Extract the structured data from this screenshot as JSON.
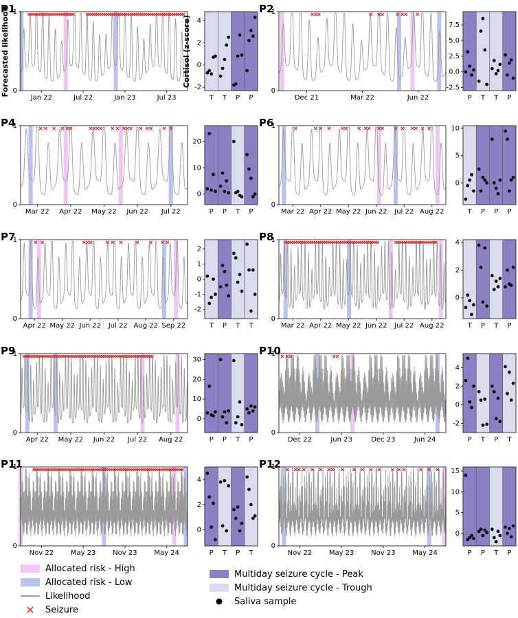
{
  "labels": {
    "y_likelihood": "Forecasted likelihood",
    "y_cortisol": "Cortisol (z-score)"
  },
  "legend": [
    {
      "key": "high",
      "label": "Allocated risk - High",
      "color": "#eec8f2",
      "kind": "patch"
    },
    {
      "key": "low",
      "label": "Allocated risk - Low",
      "color": "#b9c3ec",
      "kind": "patch"
    },
    {
      "key": "likelihood",
      "label": "Likelihood",
      "color": "#9a9a9a",
      "kind": "line"
    },
    {
      "key": "seizure",
      "label": "Seizure",
      "color": "#d62728",
      "kind": "x"
    },
    {
      "key": "peak",
      "label": "Multiday seizure cycle - Peak",
      "color": "#8b80c4",
      "kind": "patch"
    },
    {
      "key": "trough",
      "label": "Multiday seizure cycle - Trough",
      "color": "#dcdaee",
      "kind": "patch"
    },
    {
      "key": "saliva",
      "label": "Saliva sample",
      "color": "#000000",
      "kind": "dot"
    }
  ],
  "colors": {
    "peak": "#8b80c4",
    "trough": "#dcdaee",
    "high": "#eec8f2",
    "low": "#b9c3ec",
    "likelihood": "#9a9a9a",
    "seizure": "#d62728"
  },
  "chart_data": [
    {
      "panel": "P1",
      "type": "line",
      "ylim": [
        0,
        1
      ],
      "yticks": [
        "0",
        "1"
      ],
      "xticks": [
        "Jan 22",
        "Jul 22",
        "Jan 23",
        "Jul 23"
      ],
      "cycles": 4,
      "density": "high",
      "high_bands": [
        0.27
      ],
      "low_bands": [
        0.005,
        0.57
      ],
      "seizure_spans": [
        [
          0.05,
          0.32
        ],
        [
          0.4,
          0.98
        ]
      ],
      "cortisol": {
        "ylim": [
          -2.3,
          4.8
        ],
        "yticks": [
          "-2",
          "0",
          "2",
          "4"
        ],
        "phases": [
          "T",
          "T",
          "P",
          "P"
        ],
        "samples": [
          [
            -0.7,
            -0.5,
            -0.8,
            0.7,
            0.8
          ],
          [
            -1.0,
            -0.3,
            0.5,
            1.8,
            2.5
          ],
          [
            -1.8,
            -1.7,
            0.8,
            2.7,
            0.9
          ],
          [
            -0.5,
            2.2,
            3.1,
            2.6,
            4.3
          ]
        ]
      }
    },
    {
      "panel": "P2",
      "type": "line",
      "ylim": [
        0,
        1
      ],
      "yticks": [
        "0",
        "1"
      ],
      "xticks": [
        "Dec 21",
        "Mar 22",
        "Jun 22"
      ],
      "cycles": 4,
      "density": "medium",
      "high_bands": [
        0.02,
        0.8
      ],
      "low_bands": [
        0.72,
        0.96
      ],
      "seizure_points": [
        0.2,
        0.22,
        0.24,
        0.55,
        0.6,
        0.62,
        0.71,
        0.74,
        0.76,
        0.83
      ],
      "cortisol": {
        "ylim": [
          -3,
          9.6
        ],
        "yticks": [
          "-2.5",
          "0.0",
          "2.5",
          "5.0",
          "7.5"
        ],
        "phases": [
          "P",
          "T",
          "T",
          "P"
        ],
        "samples": [
          [
            0.0,
            3.2,
            0.9,
            -0.5,
            0.3
          ],
          [
            -1.5,
            6.5,
            8.5,
            3.5,
            -2.0
          ],
          [
            0.5,
            1.8,
            -0.3,
            0.2,
            1.2
          ],
          [
            2.7,
            -0.5,
            1.4,
            1.9,
            -1.0
          ]
        ]
      }
    },
    {
      "panel": "P4",
      "type": "line",
      "ylim": [
        0,
        1
      ],
      "yticks": [
        "0",
        "1"
      ],
      "xticks": [
        "Mar 22",
        "Apr 22",
        "May 22",
        "Jun 22",
        "Jul 22"
      ],
      "cycles": 5,
      "density": "low",
      "high_bands": [
        0.27,
        0.6
      ],
      "low_bands": [
        0.06,
        0.9
      ],
      "seizure_points": [
        0.12,
        0.15,
        0.2,
        0.25,
        0.28,
        0.3,
        0.42,
        0.44,
        0.46,
        0.48,
        0.55,
        0.58,
        0.62,
        0.64,
        0.66,
        0.72,
        0.76,
        0.78,
        0.86,
        0.9
      ],
      "cortisol": {
        "ylim": [
          -4,
          26
        ],
        "yticks": [
          "0",
          "10",
          "20"
        ],
        "phases": [
          "P",
          "P",
          "T",
          "P"
        ],
        "samples": [
          [
            2.0,
            23.0,
            1.5,
            7.5,
            1.0
          ],
          [
            3.0,
            8.0,
            1.0,
            5.0,
            0.5
          ],
          [
            20.0,
            0.5,
            1.0,
            -0.5,
            -1.0
          ],
          [
            15.0,
            9.5,
            6.0,
            -1.0,
            0.0
          ]
        ]
      }
    },
    {
      "panel": "P6",
      "type": "line",
      "ylim": [
        0,
        1
      ],
      "yticks": [
        "0",
        "1"
      ],
      "xticks": [
        "Mar 22",
        "Apr 22",
        "May 22",
        "Jun 22",
        "Jul 22",
        "Aug 22"
      ],
      "cycles": 6,
      "density": "low",
      "high_bands": [
        0.6,
        0.95
      ],
      "low_bands": [
        0.03,
        0.7
      ],
      "seizure_points": [
        0.1,
        0.22,
        0.25,
        0.3,
        0.38,
        0.4,
        0.48,
        0.52,
        0.54,
        0.6,
        0.62,
        0.7,
        0.74,
        0.8,
        0.82,
        0.86,
        0.9
      ],
      "cortisol": {
        "ylim": [
          -4,
          10.5
        ],
        "yticks": [
          "0",
          "5",
          "10"
        ],
        "phases": [
          "T",
          "P",
          "P",
          "P"
        ],
        "samples": [
          [
            -3.0,
            -0.5,
            0.5,
            1.5,
            -1.5
          ],
          [
            2.5,
            -1.5,
            1.0,
            0.5,
            0.0
          ],
          [
            8.0,
            0.0,
            -1.0,
            -2.0,
            0.5
          ],
          [
            9.5,
            8.0,
            -1.5,
            0.5,
            1.0
          ]
        ]
      }
    },
    {
      "panel": "P7",
      "type": "line",
      "ylim": [
        0,
        1
      ],
      "yticks": [
        "0",
        "1"
      ],
      "xticks": [
        "Apr 22",
        "May 22",
        "Jun 22",
        "Jul 22",
        "Aug 22",
        "Sep 22"
      ],
      "cycles": 8,
      "density": "low",
      "high_bands": [
        0.11,
        0.93
      ],
      "low_bands": [
        0.06,
        0.86
      ],
      "seizure_points": [
        0.09,
        0.13,
        0.38,
        0.4,
        0.42,
        0.52,
        0.55,
        0.6,
        0.7,
        0.78,
        0.85,
        0.88
      ],
      "cortisol": {
        "ylim": [
          -2.6,
          2.6
        ],
        "yticks": [
          "-2",
          "-1",
          "0",
          "1",
          "2"
        ],
        "phases": [
          "T",
          "P",
          "T",
          "T"
        ],
        "samples": [
          [
            0.2,
            -1.6,
            -1.2,
            0.0,
            -1.0
          ],
          [
            -0.5,
            0.9,
            0.5,
            -0.4,
            -1.1
          ],
          [
            1.7,
            1.4,
            -0.2,
            0.3,
            -0.8
          ],
          [
            2.3,
            0.6,
            -2.1,
            0.6,
            -1.0
          ]
        ]
      }
    },
    {
      "panel": "P8",
      "type": "line",
      "ylim": [
        0,
        1
      ],
      "yticks": [
        "0",
        "1"
      ],
      "xticks": [
        "Mar 22",
        "Apr 22",
        "May 22",
        "Jun 22",
        "Jul 22",
        "Aug 22"
      ],
      "cycles": 10,
      "density": "medium",
      "high_bands": [
        0.67,
        0.97
      ],
      "low_bands": [
        0.04,
        0.42
      ],
      "seizure_spans": [
        [
          0.04,
          0.6
        ],
        [
          0.7,
          0.95
        ]
      ],
      "cortisol": {
        "ylim": [
          -1.5,
          4.2
        ],
        "yticks": [
          "0",
          "2",
          "4"
        ],
        "phases": [
          "T",
          "P",
          "T",
          "P"
        ],
        "samples": [
          [
            -0.7,
            0.2,
            -0.2,
            -1.2,
            -0.5
          ],
          [
            3.8,
            2.2,
            -0.3,
            3.6,
            -0.6
          ],
          [
            1.6,
            0.6,
            1.2,
            0.8,
            1.4
          ],
          [
            0.8,
            2.0,
            1.0,
            0.9,
            2.2
          ]
        ]
      }
    },
    {
      "panel": "P9",
      "type": "line",
      "ylim": [
        0,
        1
      ],
      "yticks": [
        "0",
        "1"
      ],
      "xticks": [
        "Apr 22",
        "May 22",
        "Jun 22",
        "Jul 22",
        "Aug 22"
      ],
      "cycles": 12,
      "density": "medium",
      "high_bands": [
        0.73,
        0.94
      ],
      "low_bands": [
        0.04,
        0.21
      ],
      "seizure_spans": [
        [
          0.02,
          0.8
        ]
      ],
      "cortisol": {
        "ylim": [
          -7,
          33
        ],
        "yticks": [
          "0",
          "10",
          "20",
          "30"
        ],
        "phases": [
          "P",
          "P",
          "T",
          "P"
        ],
        "samples": [
          [
            3.0,
            16.5,
            2.0,
            1.5,
            3.5
          ],
          [
            30.0,
            1.0,
            3.5,
            -2.0,
            4.0
          ],
          [
            29.5,
            -2.0,
            1.0,
            8.5,
            -3.0
          ],
          [
            5.0,
            3.0,
            6.5,
            4.0,
            6.0
          ]
        ]
      }
    },
    {
      "panel": "P10",
      "type": "line",
      "ylim": [
        0,
        1
      ],
      "yticks": [
        "0",
        "1"
      ],
      "xticks": [
        "Dec 22",
        "Jun 23",
        "Dec 23",
        "Jun 24"
      ],
      "cycles": 30,
      "density": "high",
      "high_bands": [
        0.44
      ],
      "low_bands": [
        0.23,
        0.95
      ],
      "seizure_points": [
        0.02,
        0.05,
        0.07,
        0.33,
        0.35
      ],
      "cortisol": {
        "ylim": [
          -3,
          5.5
        ],
        "yticks": [
          "-2",
          "0",
          "2",
          "4"
        ],
        "phases": [
          "P",
          "T",
          "P",
          "T"
        ],
        "samples": [
          [
            2.6,
            5.0,
            0.3,
            -0.3,
            2.0
          ],
          [
            1.4,
            0.5,
            -2.2,
            0.6,
            -2.1
          ],
          [
            2.0,
            1.4,
            -1.5,
            0.7,
            -1.8
          ],
          [
            4.1,
            1.2,
            3.5,
            0.5,
            2.3
          ]
        ]
      }
    },
    {
      "panel": "P11",
      "type": "line",
      "ylim": [
        0,
        1
      ],
      "yticks": [
        "0",
        "1"
      ],
      "xticks": [
        "Nov 22",
        "May 23",
        "Nov 23",
        "May 24"
      ],
      "cycles": 45,
      "density": "veryhigh",
      "high_bands": [
        0.0,
        0.92
      ],
      "low_bands": [
        0.5,
        0.99
      ],
      "seizure_spans": [
        [
          0.08,
          0.98
        ]
      ],
      "cortisol": {
        "ylim": [
          -1.3,
          5.0
        ],
        "yticks": [
          "0",
          "2",
          "4"
        ],
        "phases": [
          "P",
          "T",
          "P",
          "T"
        ],
        "samples": [
          [
            4.5,
            2.6,
            0.2,
            2.1,
            -0.8
          ],
          [
            3.8,
            0.3,
            3.9,
            -0.1,
            3.5
          ],
          [
            1.6,
            0.9,
            1.8,
            -0.1,
            0.5
          ],
          [
            4.2,
            3.2,
            2.0,
            0.9,
            1.1
          ]
        ]
      }
    },
    {
      "panel": "P12",
      "type": "line",
      "ylim": [
        0,
        1
      ],
      "yticks": [
        "0",
        "1"
      ],
      "xticks": [
        "Nov 22",
        "May 23",
        "Nov 23",
        "May 24"
      ],
      "cycles": 40,
      "density": "high",
      "high_bands": [
        0.99
      ],
      "low_bands": [
        0.03,
        0.9
      ],
      "seizure_points": [
        0.05,
        0.1,
        0.12,
        0.15,
        0.2,
        0.25,
        0.3,
        0.32,
        0.38,
        0.45,
        0.5,
        0.55,
        0.6,
        0.68,
        0.72,
        0.75,
        0.85,
        0.9,
        0.95
      ],
      "cortisol": {
        "ylim": [
          -3,
          16
        ],
        "yticks": [
          "0",
          "5",
          "10",
          "15"
        ],
        "phases": [
          "P",
          "P",
          "T",
          "P"
        ],
        "samples": [
          [
            14.0,
            -1.5,
            -1.0,
            -0.5,
            -1.2
          ],
          [
            0.5,
            1.0,
            -0.5,
            0.8,
            0.2
          ],
          [
            1.0,
            -1.0,
            -2.0,
            0.5,
            -0.5
          ],
          [
            1.5,
            0.0,
            1.2,
            -0.8,
            1.8
          ]
        ]
      }
    }
  ]
}
